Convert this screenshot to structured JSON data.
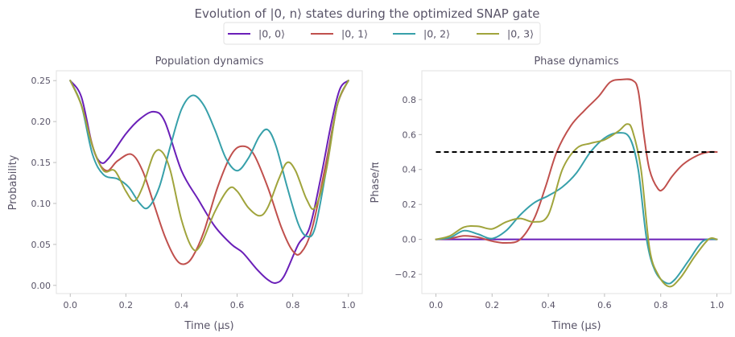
{
  "figure": {
    "title": "Evolution of |0, n⟩ states during the optimized SNAP gate"
  },
  "legend": {
    "placement": "top-center",
    "entries": [
      {
        "label": "|0, 0⟩",
        "color": "#6a1fb8"
      },
      {
        "label": "|0, 1⟩",
        "color": "#c0504d"
      },
      {
        "label": "|0, 2⟩",
        "color": "#37a0aa"
      },
      {
        "label": "|0, 3⟩",
        "color": "#a0a43c"
      }
    ]
  },
  "chart_data": [
    {
      "type": "line",
      "title": "Population dynamics",
      "xlabel": "Time (μs)",
      "ylabel": "Probability",
      "xlim": [
        -0.05,
        1.05
      ],
      "ylim": [
        -0.01,
        0.262
      ],
      "xticks": [
        0.0,
        0.2,
        0.4,
        0.6,
        0.8,
        1.0
      ],
      "xtick_labels": [
        "0.0",
        "0.2",
        "0.4",
        "0.6",
        "0.8",
        "1.0"
      ],
      "yticks": [
        0.0,
        0.05,
        0.1,
        0.15,
        0.2,
        0.25
      ],
      "ytick_labels": [
        "0.00",
        "0.05",
        "0.10",
        "0.15",
        "0.20",
        "0.25"
      ],
      "grid": false,
      "series": [
        {
          "name": "|0, 0⟩",
          "color": "#6a1fb8",
          "points": [
            [
              0,
              0.25
            ],
            [
              0.04,
              0.23
            ],
            [
              0.08,
              0.17
            ],
            [
              0.11,
              0.15
            ],
            [
              0.14,
              0.156
            ],
            [
              0.2,
              0.185
            ],
            [
              0.25,
              0.203
            ],
            [
              0.3,
              0.212
            ],
            [
              0.34,
              0.2
            ],
            [
              0.4,
              0.14
            ],
            [
              0.46,
              0.105
            ],
            [
              0.52,
              0.072
            ],
            [
              0.58,
              0.05
            ],
            [
              0.62,
              0.04
            ],
            [
              0.67,
              0.02
            ],
            [
              0.71,
              0.007
            ],
            [
              0.74,
              0.003
            ],
            [
              0.77,
              0.012
            ],
            [
              0.82,
              0.05
            ],
            [
              0.86,
              0.07
            ],
            [
              0.9,
              0.13
            ],
            [
              0.94,
              0.2
            ],
            [
              0.97,
              0.24
            ],
            [
              1.0,
              0.25
            ]
          ]
        },
        {
          "name": "|0, 1⟩",
          "color": "#c0504d",
          "points": [
            [
              0,
              0.25
            ],
            [
              0.04,
              0.22
            ],
            [
              0.09,
              0.16
            ],
            [
              0.13,
              0.14
            ],
            [
              0.17,
              0.152
            ],
            [
              0.22,
              0.16
            ],
            [
              0.26,
              0.14
            ],
            [
              0.3,
              0.1
            ],
            [
              0.34,
              0.06
            ],
            [
              0.38,
              0.032
            ],
            [
              0.41,
              0.026
            ],
            [
              0.44,
              0.035
            ],
            [
              0.48,
              0.065
            ],
            [
              0.53,
              0.12
            ],
            [
              0.58,
              0.16
            ],
            [
              0.62,
              0.17
            ],
            [
              0.66,
              0.16
            ],
            [
              0.71,
              0.12
            ],
            [
              0.76,
              0.07
            ],
            [
              0.8,
              0.042
            ],
            [
              0.83,
              0.04
            ],
            [
              0.87,
              0.07
            ],
            [
              0.92,
              0.15
            ],
            [
              0.96,
              0.22
            ],
            [
              1.0,
              0.25
            ]
          ]
        },
        {
          "name": "|0, 2⟩",
          "color": "#37a0aa",
          "points": [
            [
              0,
              0.25
            ],
            [
              0.04,
              0.22
            ],
            [
              0.08,
              0.16
            ],
            [
              0.12,
              0.135
            ],
            [
              0.17,
              0.13
            ],
            [
              0.21,
              0.12
            ],
            [
              0.25,
              0.1
            ],
            [
              0.28,
              0.095
            ],
            [
              0.32,
              0.12
            ],
            [
              0.36,
              0.17
            ],
            [
              0.4,
              0.215
            ],
            [
              0.44,
              0.232
            ],
            [
              0.48,
              0.22
            ],
            [
              0.52,
              0.19
            ],
            [
              0.56,
              0.155
            ],
            [
              0.6,
              0.14
            ],
            [
              0.64,
              0.155
            ],
            [
              0.68,
              0.182
            ],
            [
              0.71,
              0.19
            ],
            [
              0.74,
              0.17
            ],
            [
              0.78,
              0.12
            ],
            [
              0.82,
              0.075
            ],
            [
              0.85,
              0.06
            ],
            [
              0.88,
              0.07
            ],
            [
              0.92,
              0.14
            ],
            [
              0.96,
              0.22
            ],
            [
              1.0,
              0.25
            ]
          ]
        },
        {
          "name": "|0, 3⟩",
          "color": "#a0a43c",
          "points": [
            [
              0,
              0.25
            ],
            [
              0.04,
              0.22
            ],
            [
              0.08,
              0.17
            ],
            [
              0.12,
              0.14
            ],
            [
              0.16,
              0.14
            ],
            [
              0.2,
              0.115
            ],
            [
              0.23,
              0.103
            ],
            [
              0.26,
              0.12
            ],
            [
              0.3,
              0.16
            ],
            [
              0.33,
              0.163
            ],
            [
              0.36,
              0.14
            ],
            [
              0.4,
              0.08
            ],
            [
              0.44,
              0.045
            ],
            [
              0.47,
              0.05
            ],
            [
              0.52,
              0.09
            ],
            [
              0.57,
              0.118
            ],
            [
              0.6,
              0.115
            ],
            [
              0.64,
              0.095
            ],
            [
              0.68,
              0.085
            ],
            [
              0.71,
              0.095
            ],
            [
              0.75,
              0.13
            ],
            [
              0.78,
              0.15
            ],
            [
              0.81,
              0.14
            ],
            [
              0.85,
              0.105
            ],
            [
              0.88,
              0.095
            ],
            [
              0.92,
              0.14
            ],
            [
              0.96,
              0.22
            ],
            [
              1.0,
              0.25
            ]
          ]
        }
      ]
    },
    {
      "type": "line",
      "title": "Phase dynamics",
      "xlabel": "Time (μs)",
      "ylabel": "Phase/π",
      "xlim": [
        -0.05,
        1.05
      ],
      "ylim": [
        -0.31,
        0.965
      ],
      "xticks": [
        0.0,
        0.2,
        0.4,
        0.6,
        0.8,
        1.0
      ],
      "xtick_labels": [
        "0.0",
        "0.2",
        "0.4",
        "0.6",
        "0.8",
        "1.0"
      ],
      "yticks": [
        -0.2,
        0.0,
        0.2,
        0.4,
        0.6,
        0.8
      ],
      "ytick_labels": [
        "−0.2",
        "0.0",
        "0.2",
        "0.4",
        "0.6",
        "0.8"
      ],
      "grid": false,
      "reference_line": {
        "y": 0.5,
        "x_range": [
          0,
          1.0
        ],
        "style": "dashed",
        "color": "#000000"
      },
      "series": [
        {
          "name": "|0, 0⟩",
          "color": "#6a1fb8",
          "points": [
            [
              0,
              0
            ],
            [
              1.0,
              0
            ]
          ]
        },
        {
          "name": "|0, 1⟩",
          "color": "#c0504d",
          "points": [
            [
              0,
              0
            ],
            [
              0.05,
              0.005
            ],
            [
              0.1,
              0.02
            ],
            [
              0.15,
              0.012
            ],
            [
              0.2,
              -0.01
            ],
            [
              0.25,
              -0.02
            ],
            [
              0.3,
              0.0
            ],
            [
              0.35,
              0.12
            ],
            [
              0.39,
              0.3
            ],
            [
              0.43,
              0.5
            ],
            [
              0.48,
              0.65
            ],
            [
              0.53,
              0.74
            ],
            [
              0.58,
              0.82
            ],
            [
              0.62,
              0.9
            ],
            [
              0.66,
              0.915
            ],
            [
              0.7,
              0.91
            ],
            [
              0.72,
              0.85
            ],
            [
              0.74,
              0.6
            ],
            [
              0.76,
              0.4
            ],
            [
              0.79,
              0.29
            ],
            [
              0.81,
              0.29
            ],
            [
              0.84,
              0.36
            ],
            [
              0.88,
              0.43
            ],
            [
              0.93,
              0.48
            ],
            [
              0.97,
              0.5
            ],
            [
              1.0,
              0.5
            ]
          ]
        },
        {
          "name": "|0, 2⟩",
          "color": "#37a0aa",
          "points": [
            [
              0,
              0
            ],
            [
              0.05,
              0.01
            ],
            [
              0.1,
              0.05
            ],
            [
              0.15,
              0.03
            ],
            [
              0.2,
              0.005
            ],
            [
              0.25,
              0.05
            ],
            [
              0.3,
              0.14
            ],
            [
              0.35,
              0.21
            ],
            [
              0.4,
              0.25
            ],
            [
              0.45,
              0.3
            ],
            [
              0.5,
              0.38
            ],
            [
              0.55,
              0.5
            ],
            [
              0.6,
              0.58
            ],
            [
              0.65,
              0.61
            ],
            [
              0.69,
              0.58
            ],
            [
              0.72,
              0.4
            ],
            [
              0.75,
              0.0
            ],
            [
              0.78,
              -0.18
            ],
            [
              0.82,
              -0.25
            ],
            [
              0.85,
              -0.23
            ],
            [
              0.9,
              -0.12
            ],
            [
              0.95,
              -0.01
            ],
            [
              1.0,
              0.0
            ]
          ]
        },
        {
          "name": "|0, 3⟩",
          "color": "#a0a43c",
          "points": [
            [
              0,
              0
            ],
            [
              0.05,
              0.02
            ],
            [
              0.1,
              0.07
            ],
            [
              0.15,
              0.075
            ],
            [
              0.2,
              0.06
            ],
            [
              0.25,
              0.1
            ],
            [
              0.3,
              0.12
            ],
            [
              0.35,
              0.1
            ],
            [
              0.4,
              0.14
            ],
            [
              0.45,
              0.4
            ],
            [
              0.5,
              0.52
            ],
            [
              0.55,
              0.55
            ],
            [
              0.6,
              0.57
            ],
            [
              0.65,
              0.62
            ],
            [
              0.68,
              0.66
            ],
            [
              0.7,
              0.62
            ],
            [
              0.73,
              0.4
            ],
            [
              0.76,
              -0.05
            ],
            [
              0.79,
              -0.2
            ],
            [
              0.83,
              -0.27
            ],
            [
              0.87,
              -0.22
            ],
            [
              0.92,
              -0.1
            ],
            [
              0.97,
              0.0
            ],
            [
              1.0,
              0.0
            ]
          ]
        }
      ]
    }
  ]
}
